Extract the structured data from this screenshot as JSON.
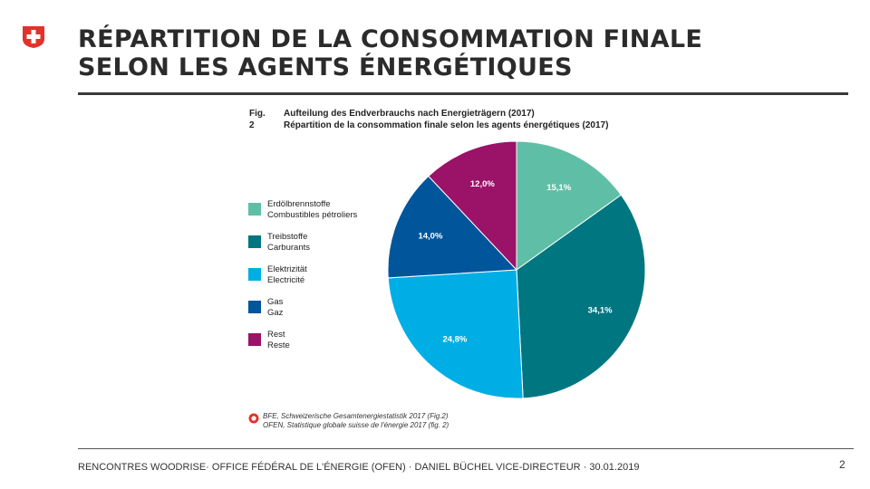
{
  "slide": {
    "title_line1": "RÉPARTITION DE LA CONSOMMATION FINALE",
    "title_line2": "SELON LES AGENTS ÉNERGÉTIQUES",
    "footer": "RENCONTRES WOODRISE· OFFICE FÉDÉRAL DE L'ÉNERGIE (OFEN) · DANIEL BÜCHEL VICE-DIRECTEUR · 30.01.2019",
    "page_number": "2"
  },
  "colors": {
    "flag_red": "#e4312b",
    "teal_light": "#5fbfa6",
    "teal_dark": "#007681",
    "light_blue": "#00aee6",
    "dark_blue": "#00559b",
    "magenta": "#9b1269"
  },
  "chart_data": {
    "type": "pie",
    "fig_label": "Fig. 2",
    "title_de": "Aufteilung des Endverbrauchs nach Energieträgern (2017)",
    "title_fr": "Répartition de la consommation finale selon les agents énergétiques (2017)",
    "slices": [
      {
        "label_de": "Erdölbrennstoffe",
        "label_fr": "Combustibles pétroliers",
        "value": 15.1,
        "value_label": "15,1%",
        "color": "#5fbfa6"
      },
      {
        "label_de": "Treibstoffe",
        "label_fr": "Carburants",
        "value": 34.1,
        "value_label": "34,1%",
        "color": "#007681"
      },
      {
        "label_de": "Elektrizität",
        "label_fr": "Electricité",
        "value": 24.8,
        "value_label": "24,8%",
        "color": "#00aee6"
      },
      {
        "label_de": "Gas",
        "label_fr": "Gaz",
        "value": 14.0,
        "value_label": "14,0%",
        "color": "#00559b"
      },
      {
        "label_de": "Rest",
        "label_fr": "Reste",
        "value": 12.0,
        "value_label": "12,0%",
        "color": "#9b1269"
      }
    ],
    "start": "12 o'clock, clockwise",
    "legend_position": "left",
    "source_line1": "BFE, Schweizerische Gesamtenergiestatistik 2017 (Fig.2)",
    "source_line2": "OFEN, Statistique globale suisse de l'énergie 2017 (fig. 2)"
  }
}
